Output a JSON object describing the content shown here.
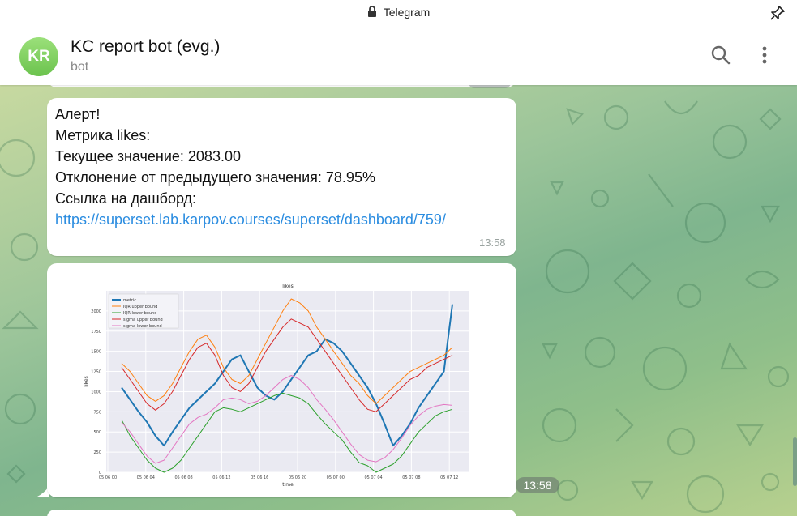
{
  "window": {
    "title": "Telegram"
  },
  "header": {
    "avatar_initials": "KR",
    "chat_title": "KC report bot (evg.)",
    "chat_subtitle": "bot"
  },
  "message1": {
    "lines": [
      "Алерт!",
      "Метрика likes:",
      "Текущее значение: 2083.00",
      "Отклонение от предыдущего значения: 78.95%",
      "Ссылка на дашборд:"
    ],
    "link": "https://superset.lab.karpov.courses/superset/dashboard/759/",
    "time": "13:58"
  },
  "message2": {
    "time": "13:58"
  },
  "colors": {
    "metric": "#1f77b4",
    "iqr_upper": "#ff7f0e",
    "iqr_lower": "#2ca02c",
    "sigma_upper": "#d62728",
    "sigma_lower": "#e377c2",
    "plot_bg": "#eaeaf2",
    "accent": "#2a8ce0"
  },
  "chart_data": {
    "type": "line",
    "title": "likes",
    "xlabel": "time",
    "ylabel": "likes",
    "ylim": [
      0,
      2250
    ],
    "yticks": [
      0,
      250,
      500,
      750,
      1000,
      1250,
      1500,
      1750,
      2000
    ],
    "xticks": [
      "05 06 00",
      "05 06 04",
      "05 06 08",
      "05 06 12",
      "05 06 16",
      "05 06 20",
      "05 07 00",
      "05 07 04",
      "05 07 08",
      "05 07 12"
    ],
    "legend_placement": "top-left",
    "grid": true,
    "series": [
      {
        "name": "metric",
        "values": [
          1050,
          900,
          750,
          620,
          450,
          330,
          500,
          650,
          800,
          900,
          1000,
          1100,
          1250,
          1400,
          1450,
          1250,
          1050,
          950,
          900,
          1000,
          1150,
          1300,
          1450,
          1500,
          1650,
          1600,
          1500,
          1350,
          1200,
          1050,
          850,
          600,
          330,
          450,
          600,
          800,
          950,
          1100,
          1250,
          2083
        ]
      },
      {
        "name": "IQR upper bound",
        "values": [
          1350,
          1250,
          1100,
          950,
          880,
          950,
          1100,
          1300,
          1500,
          1650,
          1700,
          1550,
          1300,
          1150,
          1100,
          1200,
          1400,
          1600,
          1800,
          2000,
          2150,
          2100,
          2000,
          1800,
          1650,
          1500,
          1350,
          1200,
          1100,
          950,
          850,
          950,
          1050,
          1150,
          1250,
          1300,
          1350,
          1400,
          1450,
          1550
        ]
      },
      {
        "name": "IQR lower bound",
        "values": [
          650,
          450,
          300,
          150,
          50,
          0,
          50,
          150,
          300,
          450,
          600,
          750,
          800,
          780,
          750,
          800,
          850,
          900,
          950,
          980,
          950,
          920,
          850,
          720,
          600,
          500,
          400,
          250,
          120,
          80,
          0,
          50,
          100,
          200,
          350,
          500,
          600,
          700,
          750,
          780
        ]
      },
      {
        "name": "sigma upper bound",
        "values": [
          1300,
          1150,
          1000,
          850,
          770,
          850,
          1000,
          1200,
          1400,
          1550,
          1600,
          1450,
          1200,
          1050,
          1000,
          1100,
          1300,
          1500,
          1650,
          1800,
          1900,
          1850,
          1800,
          1650,
          1500,
          1350,
          1200,
          1050,
          900,
          780,
          750,
          850,
          950,
          1050,
          1150,
          1200,
          1300,
          1350,
          1400,
          1450
        ]
      },
      {
        "name": "sigma lower bound",
        "values": [
          620,
          500,
          350,
          200,
          110,
          150,
          300,
          450,
          600,
          680,
          720,
          800,
          900,
          920,
          900,
          850,
          880,
          950,
          1050,
          1150,
          1200,
          1150,
          1050,
          900,
          780,
          650,
          500,
          350,
          220,
          150,
          130,
          180,
          280,
          420,
          580,
          700,
          780,
          820,
          840,
          830
        ]
      }
    ]
  }
}
